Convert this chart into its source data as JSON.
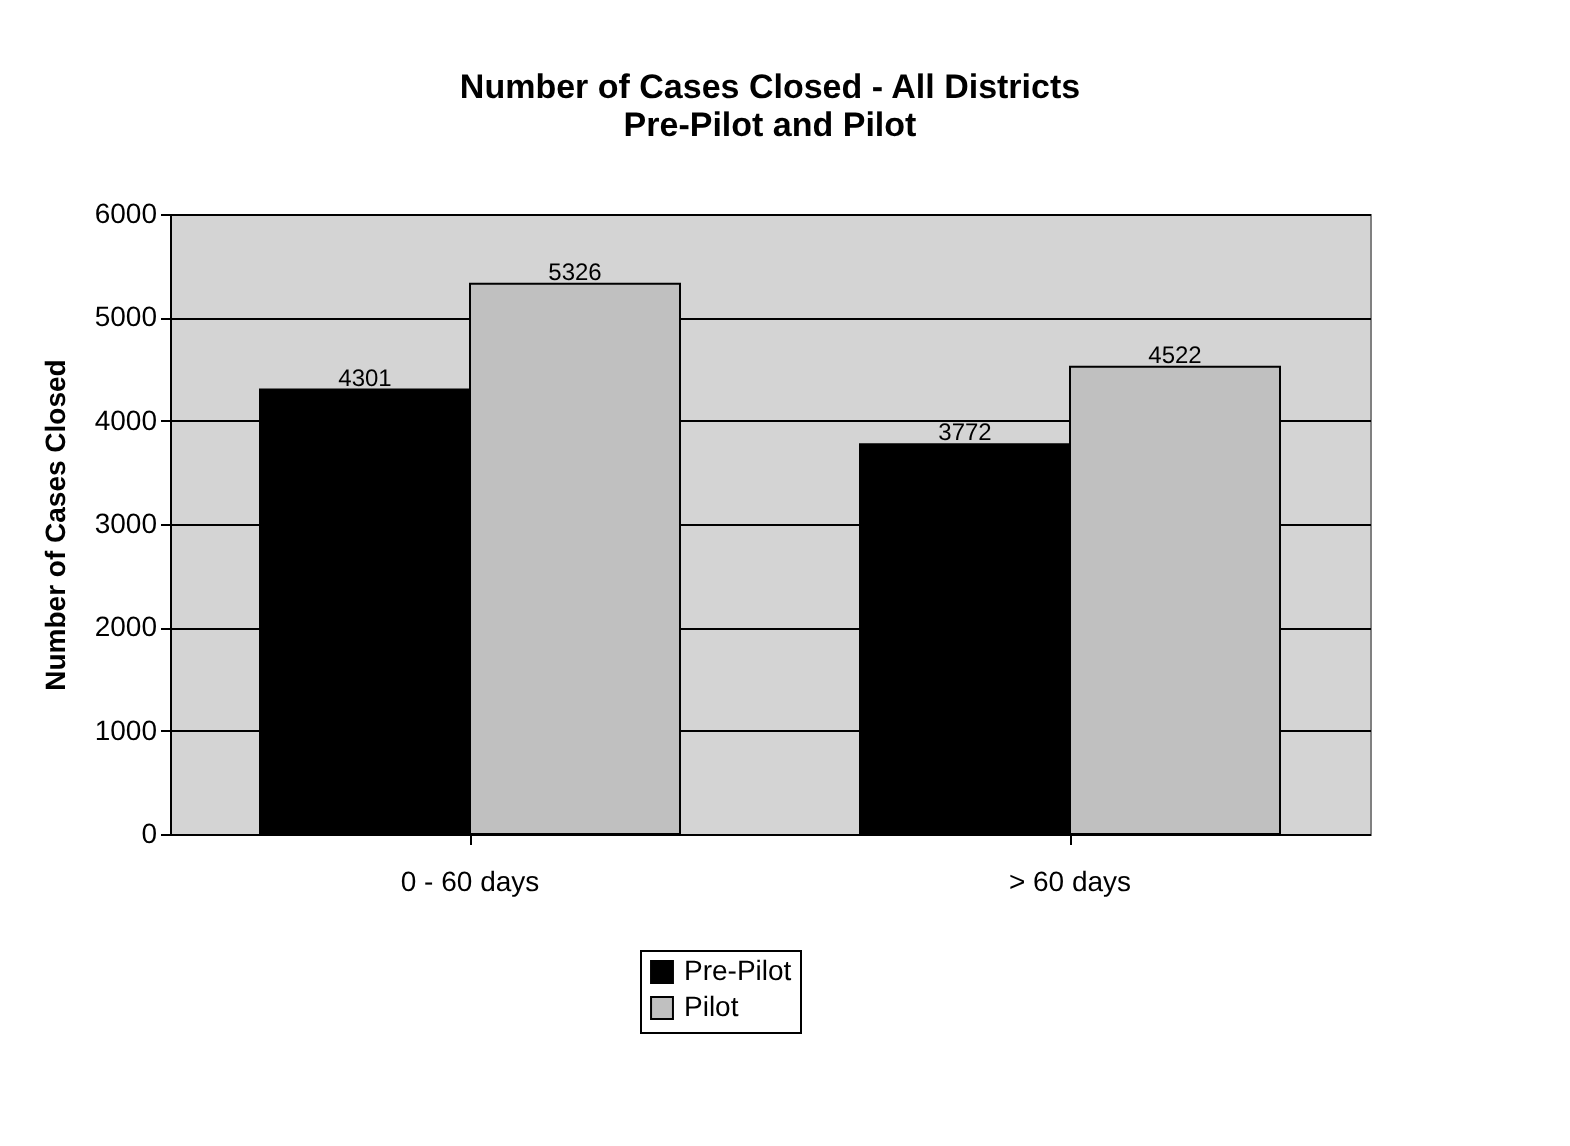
{
  "chart_data": {
    "type": "bar",
    "title": "Number of Cases Closed - All Districts\nPre-Pilot and Pilot",
    "ylabel": "Number of Cases Closed",
    "categories": [
      "0 - 60 days",
      "> 60 days"
    ],
    "series": [
      {
        "name": "Pre-Pilot",
        "color": "#000000",
        "values": [
          4301,
          3772
        ]
      },
      {
        "name": "Pilot",
        "color": "#c0c0c0",
        "values": [
          5326,
          4522
        ]
      }
    ],
    "ylim": [
      0,
      6000
    ],
    "yticks": [
      0,
      1000,
      2000,
      3000,
      4000,
      5000,
      6000
    ],
    "grid": "y",
    "legend": "bottom",
    "data_labels": true
  }
}
